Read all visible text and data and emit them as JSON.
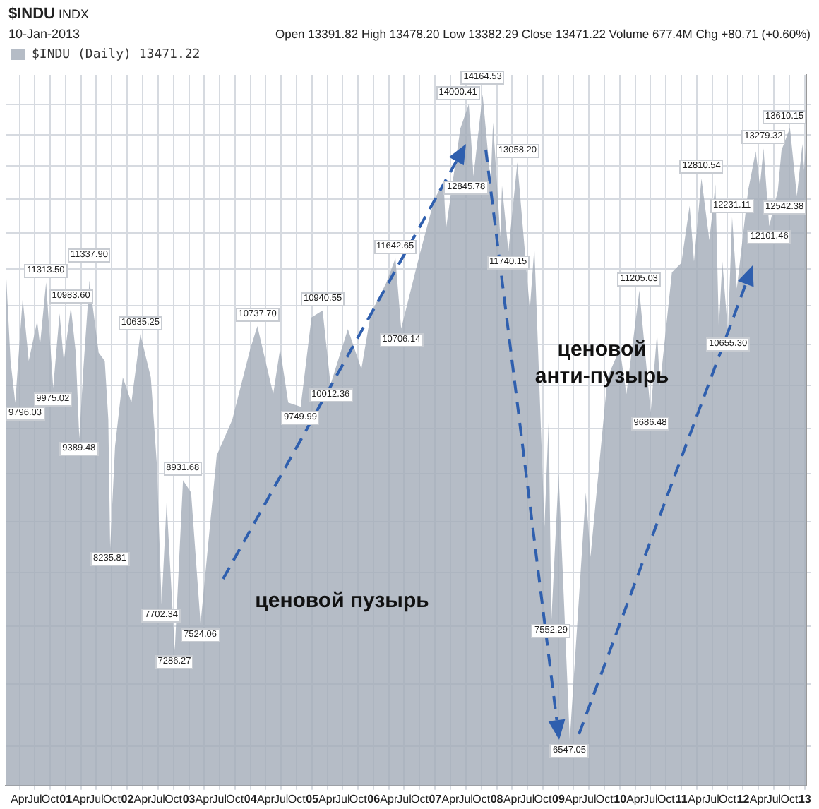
{
  "chart_data": {
    "type": "area",
    "title": "$INDU",
    "subtitle": "10-Jan-2013",
    "annotations": [
      "INDX",
      "Open 13391.82 High 13478.20 Low 13382.29 Close 13471.22 Volume 677.4M Chg +80.71 (+0.60%)",
      "ценовой пузырь",
      "ценовой анти-пузырь"
    ],
    "log": true,
    "grid": true,
    "legend": "top left",
    "tick_labels": "x",
    "marker": "none",
    "xlim": [
      "2000-01-10",
      "2013-01-10"
    ],
    "ylim": [
      6200,
      14500
    ],
    "xticks": [
      {
        "value": "2000-04-01",
        "label": "Apr"
      },
      {
        "value": "2000-07-01",
        "label": "Jul"
      },
      {
        "value": "2000-10-01",
        "label": "Oct"
      },
      {
        "value": "2001-01-01",
        "label": "01"
      },
      {
        "value": "2001-04-01",
        "label": "Apr"
      },
      {
        "value": "2001-07-01",
        "label": "Jul"
      },
      {
        "value": "2001-10-01",
        "label": "Oct"
      },
      {
        "value": "2002-01-01",
        "label": "02"
      },
      {
        "value": "2002-04-01",
        "label": "Apr"
      },
      {
        "value": "2002-07-01",
        "label": "Jul"
      },
      {
        "value": "2002-10-01",
        "label": "Oct"
      },
      {
        "value": "2003-01-01",
        "label": "03"
      },
      {
        "value": "2003-04-01",
        "label": "Apr"
      },
      {
        "value": "2003-07-01",
        "label": "Jul"
      },
      {
        "value": "2003-10-01",
        "label": "Oct"
      },
      {
        "value": "2004-01-01",
        "label": "04"
      },
      {
        "value": "2004-04-01",
        "label": "Apr"
      },
      {
        "value": "2004-07-01",
        "label": "Jul"
      },
      {
        "value": "2004-10-01",
        "label": "Oct"
      },
      {
        "value": "2005-01-01",
        "label": "05"
      },
      {
        "value": "2005-04-01",
        "label": "Apr"
      },
      {
        "value": "2005-07-01",
        "label": "Jul"
      },
      {
        "value": "2005-10-01",
        "label": "Oct"
      },
      {
        "value": "2006-01-01",
        "label": "06"
      },
      {
        "value": "2006-04-01",
        "label": "Apr"
      },
      {
        "value": "2006-07-01",
        "label": "Jul"
      },
      {
        "value": "2006-10-01",
        "label": "Oct"
      },
      {
        "value": "2007-01-01",
        "label": "07"
      },
      {
        "value": "2007-04-01",
        "label": "Apr"
      },
      {
        "value": "2007-07-01",
        "label": "Jul"
      },
      {
        "value": "2007-10-01",
        "label": "Oct"
      },
      {
        "value": "2008-01-01",
        "label": "08"
      },
      {
        "value": "2008-04-01",
        "label": "Apr"
      },
      {
        "value": "2008-07-01",
        "label": "Jul"
      },
      {
        "value": "2008-10-01",
        "label": "Oct"
      },
      {
        "value": "2009-01-01",
        "label": "09"
      },
      {
        "value": "2009-04-01",
        "label": "Apr"
      },
      {
        "value": "2009-07-01",
        "label": "Jul"
      },
      {
        "value": "2009-10-01",
        "label": "Oct"
      },
      {
        "value": "2010-01-01",
        "label": "10"
      },
      {
        "value": "2010-04-01",
        "label": "Apr"
      },
      {
        "value": "2010-07-01",
        "label": "Jul"
      },
      {
        "value": "2010-10-01",
        "label": "Oct"
      },
      {
        "value": "2011-01-01",
        "label": "11"
      },
      {
        "value": "2011-04-01",
        "label": "Apr"
      },
      {
        "value": "2011-07-01",
        "label": "Jul"
      },
      {
        "value": "2011-10-01",
        "label": "Oct"
      },
      {
        "value": "2012-01-01",
        "label": "12"
      },
      {
        "value": "2012-04-01",
        "label": "Apr"
      },
      {
        "value": "2012-07-01",
        "label": "Jul"
      },
      {
        "value": "2012-10-01",
        "label": "Oct"
      },
      {
        "value": "2013-01-01",
        "label": "13"
      }
    ],
    "yticks": [
      {
        "value": 6500,
        "label": null
      },
      {
        "value": 7000,
        "label": null
      },
      {
        "value": 7500,
        "label": null
      },
      {
        "value": 8000,
        "label": null
      },
      {
        "value": 8500,
        "label": null
      },
      {
        "value": 9000,
        "label": null
      },
      {
        "value": 9500,
        "label": null
      },
      {
        "value": 10000,
        "label": null
      },
      {
        "value": 10500,
        "label": null
      },
      {
        "value": 11000,
        "label": null
      },
      {
        "value": 11500,
        "label": null
      },
      {
        "value": 12000,
        "label": null
      },
      {
        "value": 12500,
        "label": null
      },
      {
        "value": 13000,
        "label": null
      },
      {
        "value": 13500,
        "label": null
      },
      {
        "value": 14000,
        "label": null
      }
    ],
    "series": [
      {
        "name": "$INDU (Daily) 13471.22",
        "color": "#a3abb8",
        "x": [
          "2000-01-10",
          "2000-02-08",
          "2000-03-07",
          "2000-04-20",
          "2000-05-26",
          "2000-07-15",
          "2000-08-01",
          "2000-09-06",
          "2000-10-18",
          "2000-11-25",
          "2000-12-20",
          "2001-01-31",
          "2001-03-01",
          "2001-03-22",
          "2001-04-15",
          "2001-05-21",
          "2001-07-15",
          "2001-08-20",
          "2001-09-10",
          "2001-09-21",
          "2001-10-20",
          "2001-12-05",
          "2002-01-25",
          "2002-03-19",
          "2002-05-20",
          "2002-06-25",
          "2002-07-23",
          "2002-08-22",
          "2002-10-09",
          "2002-11-27",
          "2003-01-14",
          "2003-03-11",
          "2003-06-15",
          "2003-09-15",
          "2003-12-31",
          "2004-02-11",
          "2004-05-15",
          "2004-06-25",
          "2004-08-12",
          "2004-10-25",
          "2004-12-28",
          "2005-03-04",
          "2005-04-20",
          "2005-08-01",
          "2005-10-20",
          "2005-12-15",
          "2006-03-15",
          "2006-05-10",
          "2006-06-13",
          "2006-10-01",
          "2006-12-27",
          "2007-02-20",
          "2007-03-05",
          "2007-05-30",
          "2007-07-19",
          "2007-08-16",
          "2007-10-09",
          "2007-11-26",
          "2007-12-10",
          "2008-01-22",
          "2008-02-01",
          "2008-03-10",
          "2008-05-02",
          "2008-07-15",
          "2008-08-11",
          "2008-10-10",
          "2008-11-04",
          "2008-11-20",
          "2009-01-02",
          "2009-03-09",
          "2009-06-12",
          "2009-07-10",
          "2009-10-19",
          "2009-12-31",
          "2010-02-08",
          "2010-04-26",
          "2010-07-02",
          "2010-08-09",
          "2010-08-26",
          "2010-11-05",
          "2010-12-31",
          "2011-02-18",
          "2011-03-16",
          "2011-04-29",
          "2011-06-15",
          "2011-07-21",
          "2011-08-10",
          "2011-08-31",
          "2011-10-03",
          "2011-10-28",
          "2011-11-25",
          "2012-01-31",
          "2012-03-16",
          "2012-04-10",
          "2012-05-01",
          "2012-06-04",
          "2012-07-25",
          "2012-08-16",
          "2012-10-05",
          "2012-11-15",
          "2012-12-18",
          "2012-12-28",
          "2013-01-10"
        ],
        "values": [
          11550,
          10300,
          9796.03,
          11100,
          10300,
          10800,
          10500,
          11313.5,
          9975.02,
          10900,
          10300,
          10983.6,
          10400,
          9389.48,
          10200,
          11337.9,
          10400,
          10300,
          9605,
          8235.81,
          9300,
          10100,
          9800,
          10635.25,
          10100,
          9100,
          7702.34,
          8700,
          7286.27,
          8931.68,
          8800,
          7524.06,
          9200,
          9600,
          10450,
          10737.7,
          9900,
          10450,
          9800,
          9749.99,
          10850,
          10940.55,
          10012.36,
          10700,
          10200,
          10900,
          11300,
          11642.65,
          10706.14,
          11700,
          12500,
          12750,
          12050,
          13600,
          14000.41,
          12845.78,
          14164.53,
          12750,
          13700,
          11950,
          12700,
          11740.15,
          13058.2,
          10950,
          11800,
          8450,
          9600,
          7552.29,
          9000,
          6547.05,
          8800,
          8150,
          10100,
          10450,
          9900,
          11205.03,
          9686.48,
          10650,
          10000,
          11450,
          11580,
          12400,
          11600,
          12810.54,
          11900,
          12720,
          10720,
          11600,
          10655.3,
          12231.11,
          11230,
          12630,
          13230,
          12700,
          13279.32,
          12101.46,
          12620,
          13250,
          13610.15,
          12542.38,
          13350,
          12940,
          13471.22
        ],
        "value_labels": [
          null,
          null,
          "9796.03",
          null,
          null,
          null,
          null,
          "11313.50",
          "9975.02",
          null,
          null,
          "10983.60",
          null,
          "9389.48",
          null,
          "11337.90",
          null,
          null,
          null,
          "8235.81",
          null,
          null,
          null,
          "10635.25",
          null,
          null,
          "7702.34",
          null,
          "7286.27",
          "8931.68",
          null,
          "7524.06",
          null,
          null,
          null,
          "10737.70",
          null,
          null,
          null,
          "9749.99",
          null,
          "10940.55",
          "10012.36",
          null,
          null,
          null,
          null,
          "11642.65",
          "10706.14",
          null,
          null,
          null,
          null,
          null,
          "14000.41",
          "12845.78",
          "14164.53",
          null,
          null,
          null,
          null,
          "11740.15",
          "13058.20",
          null,
          null,
          null,
          null,
          "7552.29",
          null,
          "6547.05",
          null,
          null,
          null,
          null,
          null,
          "11205.03",
          "9686.48",
          null,
          null,
          null,
          null,
          null,
          null,
          "12810.54",
          null,
          null,
          null,
          null,
          "10655.30",
          "12231.11",
          null,
          null,
          null,
          null,
          "13279.32",
          "12101.46",
          null,
          null,
          "13610.15",
          "12542.38",
          null,
          null,
          null
        ]
      }
    ]
  }
}
